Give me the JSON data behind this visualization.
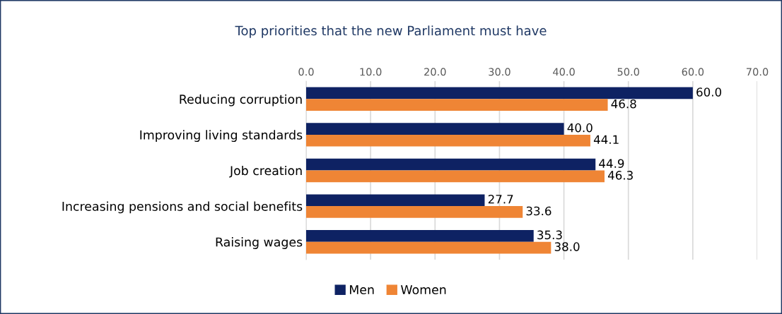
{
  "chart_data": {
    "type": "bar",
    "orientation": "horizontal",
    "title": "Top priorities that the new Parliament must have",
    "categories": [
      "Reducing corruption",
      "Improving living standards",
      "Job creation",
      "Increasing pensions and social benefits",
      "Raising wages"
    ],
    "series": [
      {
        "name": "Men",
        "color": "#0e2263",
        "values": [
          60.0,
          40.0,
          44.9,
          27.7,
          35.3
        ],
        "value_labels": [
          "60.0",
          "40.0",
          "44.9",
          "27.7",
          "35.3"
        ]
      },
      {
        "name": "Women",
        "color": "#ef8535",
        "values": [
          46.8,
          44.1,
          46.3,
          33.6,
          38.0
        ],
        "value_labels": [
          "46.8",
          "44.1",
          "46.3",
          "33.6",
          "38.0"
        ]
      }
    ],
    "xlim": [
      0,
      70
    ],
    "xticks": [
      {
        "value": 0,
        "label": "0.0"
      },
      {
        "value": 10,
        "label": "10.0"
      },
      {
        "value": 20,
        "label": "20.0"
      },
      {
        "value": 30,
        "label": "30.0"
      },
      {
        "value": 40,
        "label": "40.0"
      },
      {
        "value": 50,
        "label": "50.0"
      },
      {
        "value": 60,
        "label": "60.0"
      },
      {
        "value": 70,
        "label": "70.0"
      }
    ],
    "grid": "x",
    "legend": "bottom"
  }
}
